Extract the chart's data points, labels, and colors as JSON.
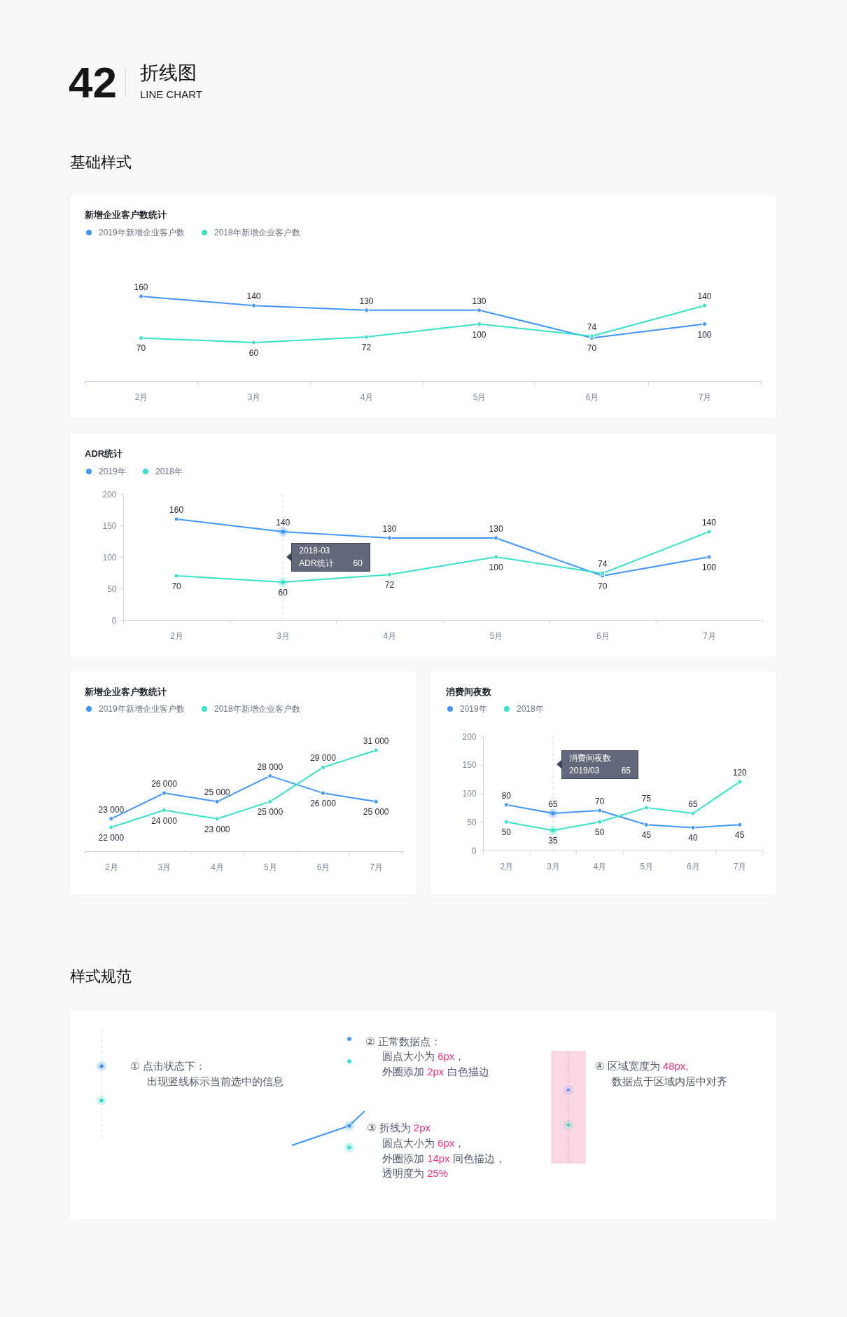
{
  "chart_data": [
    {
      "type": "line",
      "title": "新增企业客户数统计",
      "categories": [
        "2月",
        "3月",
        "4月",
        "5月",
        "6月",
        "7月"
      ],
      "series": [
        {
          "name": "2019年新增企业客户数",
          "color": "#4096ff",
          "values": [
            160,
            140,
            130,
            130,
            70,
            100
          ]
        },
        {
          "name": "2018年新增企业客户数",
          "color": "#36e2c8",
          "values": [
            70,
            60,
            72,
            100,
            74,
            140
          ]
        }
      ],
      "data_labels": true,
      "legend": "top left",
      "marker": "circle",
      "tick_labels": "x",
      "annotations": [
        "42",
        "折线图",
        "LINE CHART",
        "基础样式"
      ]
    },
    {
      "type": "line",
      "title": "ADR统计",
      "categories": [
        "2月",
        "3月",
        "4月",
        "5月",
        "6月",
        "7月"
      ],
      "series": [
        {
          "name": "2019年",
          "color": "#4096ff",
          "values": [
            160,
            140,
            130,
            130,
            70,
            100
          ]
        },
        {
          "name": "2018年",
          "color": "#36e2c8",
          "values": [
            70,
            60,
            72,
            100,
            74,
            140
          ]
        }
      ],
      "data_labels": true,
      "legend": "top left",
      "marker": "circle",
      "ylim": [
        0,
        200
      ],
      "yticks": [
        0,
        50,
        100,
        150,
        200
      ],
      "ref_lines": [
        {
          "axis": "x",
          "value": "3月",
          "line_style": "dashed",
          "color": "#d5dae3"
        }
      ],
      "annotations": [
        "2018-03",
        "ADR统计",
        "60"
      ]
    },
    {
      "type": "line",
      "title": "新增企业客户数统计",
      "categories": [
        "2月",
        "3月",
        "4月",
        "5月",
        "6月",
        "7月"
      ],
      "series": [
        {
          "name": "2019年新增企业客户数",
          "color": "#4096ff",
          "values": [
            23000,
            26000,
            25000,
            28000,
            26000,
            25000
          ],
          "value_labels": [
            "23 000",
            "26 000",
            "25 000",
            "28 000",
            "26 000",
            "25 000"
          ]
        },
        {
          "name": "2018年新增企业客户数",
          "color": "#36e2c8",
          "values": [
            22000,
            24000,
            23000,
            25000,
            29000,
            31000
          ],
          "value_labels": [
            "22 000",
            "24 000",
            "23 000",
            "25 000",
            "29 000",
            "31 000"
          ]
        }
      ],
      "legend": "top left",
      "marker": "circle",
      "tick_labels": "x"
    },
    {
      "type": "line",
      "title": "消费间夜数",
      "categories": [
        "2月",
        "3月",
        "4月",
        "5月",
        "6月",
        "7月"
      ],
      "series": [
        {
          "name": "2019年",
          "color": "#4096ff",
          "values": [
            80,
            65,
            70,
            45,
            40,
            45
          ]
        },
        {
          "name": "2018年",
          "color": "#36e2c8",
          "values": [
            50,
            35,
            50,
            75,
            65,
            120
          ]
        }
      ],
      "data_labels": true,
      "legend": "top left",
      "marker": "circle",
      "ylim": [
        0,
        200
      ],
      "yticks": [
        0,
        50,
        100,
        150,
        200
      ],
      "ref_lines": [
        {
          "axis": "x",
          "value": "3月",
          "line_style": "dashed",
          "color": "#d5dae3"
        }
      ],
      "annotations": [
        "消费间夜数",
        "2019/03",
        "65"
      ]
    },
    {
      "type": "other",
      "title": "样式规范",
      "annotations": [
        "① 点击状态下：",
        "出现竖线标示当前选中的信息",
        "② 正常数据点：",
        "圆点大小为 6px，",
        "外圈添加 2px 白色描边",
        "③ 折线为 2px",
        "圆点大小为 6px，",
        "外圈添加 14px 同色描边，",
        "透明度为 25%",
        "④ 区域宽度为 48px,",
        "数据点于区域内居中对齐"
      ]
    }
  ]
}
